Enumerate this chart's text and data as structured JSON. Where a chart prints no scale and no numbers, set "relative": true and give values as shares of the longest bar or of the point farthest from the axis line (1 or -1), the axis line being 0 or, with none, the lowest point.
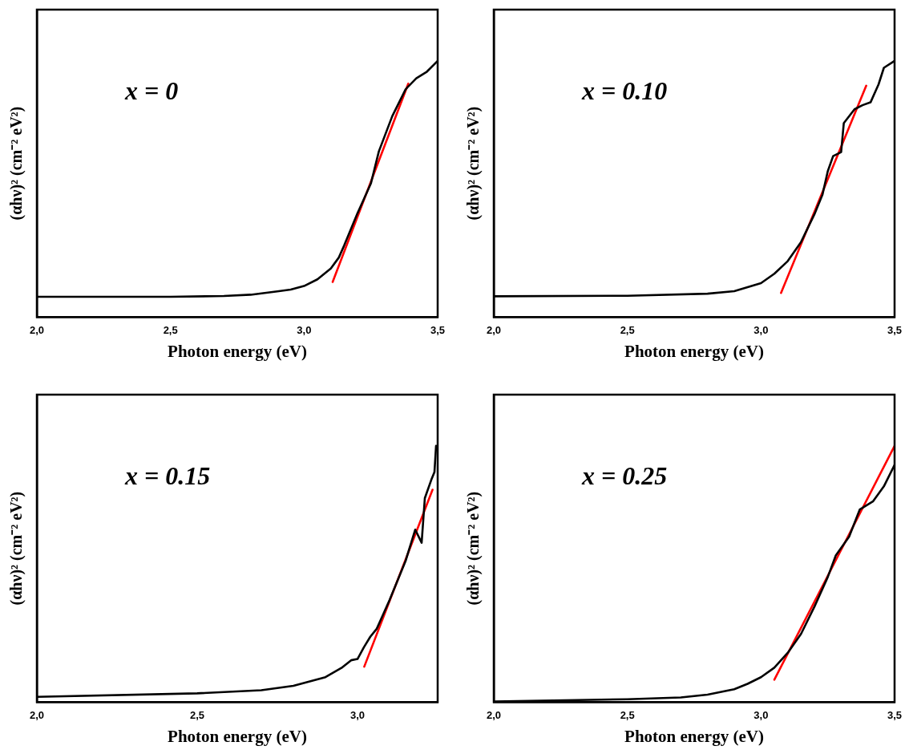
{
  "chart_data": [
    {
      "type": "line",
      "relative": true,
      "xlabel": "Photon energy (eV)",
      "ylabel": "(αhν)² (cm⁻² eV²)",
      "annotations": [
        "x = 0"
      ],
      "tick_labels": "x",
      "marker": "none",
      "xlim": [
        2.0,
        3.5
      ],
      "xticks": [
        {
          "value": 2.0,
          "label": "2,0"
        },
        {
          "value": 2.5,
          "label": "2,5"
        },
        {
          "value": 3.0,
          "label": "3,0"
        },
        {
          "value": 3.5,
          "label": "3,5"
        }
      ],
      "series": [
        {
          "color": "#000000",
          "x": [
            2.0,
            2.5,
            2.7,
            2.8,
            2.9,
            2.95,
            3.0,
            3.05,
            3.1,
            3.13,
            3.15,
            3.2,
            3.25,
            3.28,
            3.33,
            3.38,
            3.42,
            3.46,
            3.5
          ],
          "values": [
            0.079,
            0.079,
            0.082,
            0.087,
            0.1,
            0.107,
            0.121,
            0.147,
            0.189,
            0.232,
            0.279,
            0.405,
            0.521,
            0.647,
            0.784,
            0.889,
            0.932,
            0.958,
            1
          ]
        },
        {
          "color": "#ff0000",
          "x": [
            3.107,
            3.39
          ],
          "values": [
            0.137,
            0.911
          ]
        }
      ]
    },
    {
      "type": "line",
      "relative": true,
      "xlabel": "Photon energy (eV)",
      "ylabel": "(αhν)² (cm⁻² eV²)",
      "annotations": [
        "x = 0.10"
      ],
      "tick_labels": "x",
      "marker": "none",
      "xlim": [
        2.0,
        3.5
      ],
      "xticks": [
        {
          "value": 2.0,
          "label": "2,0"
        },
        {
          "value": 2.5,
          "label": "2,5"
        },
        {
          "value": 3.0,
          "label": "3,0"
        },
        {
          "value": 3.5,
          "label": "3,5"
        }
      ],
      "series": [
        {
          "color": "#000000",
          "x": [
            2.0,
            2.5,
            2.8,
            2.9,
            3.0,
            3.05,
            3.1,
            3.15,
            3.2,
            3.23,
            3.25,
            3.27,
            3.3,
            3.31,
            3.35,
            3.38,
            3.41,
            3.44,
            3.46,
            3.5
          ],
          "values": [
            0.081,
            0.083,
            0.091,
            0.101,
            0.132,
            0.169,
            0.218,
            0.293,
            0.401,
            0.477,
            0.569,
            0.628,
            0.644,
            0.757,
            0.811,
            0.827,
            0.838,
            0.908,
            0.973,
            1
          ]
        },
        {
          "color": "#ff0000",
          "x": [
            3.075,
            3.394
          ],
          "values": [
            0.094,
            0.903
          ]
        }
      ]
    },
    {
      "type": "line",
      "relative": true,
      "xlabel": "Photon energy (eV)",
      "ylabel": "(αhν)² (cm⁻² eV²)",
      "annotations": [
        "x = 0.15"
      ],
      "tick_labels": "x",
      "marker": "none",
      "xlim": [
        2.0,
        3.25
      ],
      "xticks": [
        {
          "value": 2.0,
          "label": "2,0"
        },
        {
          "value": 2.5,
          "label": "2,5"
        },
        {
          "value": 3.0,
          "label": "3,0"
        }
      ],
      "series": [
        {
          "color": "#000000",
          "x": [
            2.0,
            2.5,
            2.7,
            2.8,
            2.9,
            2.95,
            2.98,
            3.0,
            3.02,
            3.04,
            3.06,
            3.1,
            3.15,
            3.18,
            3.2,
            3.21,
            3.23,
            3.24,
            3.245
          ],
          "values": [
            0.02,
            0.034,
            0.046,
            0.063,
            0.097,
            0.133,
            0.163,
            0.168,
            0.214,
            0.255,
            0.286,
            0.398,
            0.551,
            0.673,
            0.622,
            0.796,
            0.867,
            0.898,
            1
          ]
        },
        {
          "color": "#ff0000",
          "x": [
            3.021,
            3.234
          ],
          "values": [
            0.138,
            0.829
          ]
        }
      ]
    },
    {
      "type": "line",
      "relative": true,
      "xlabel": "Photon energy (eV)",
      "ylabel": "(αhν)² (cm⁻² eV²)",
      "annotations": [
        "x = 0.25"
      ],
      "tick_labels": "x",
      "marker": "none",
      "xlim": [
        2.0,
        3.5
      ],
      "xticks": [
        {
          "value": 2.0,
          "label": "2,0"
        },
        {
          "value": 2.5,
          "label": "2,5"
        },
        {
          "value": 3.0,
          "label": "3,0"
        },
        {
          "value": 3.5,
          "label": "3,5"
        }
      ],
      "series": [
        {
          "color": "#000000",
          "x": [
            2.0,
            2.5,
            2.7,
            2.8,
            2.9,
            2.95,
            3.0,
            3.05,
            3.1,
            3.15,
            3.2,
            3.25,
            3.28,
            3.33,
            3.37,
            3.42,
            3.46,
            3.5
          ],
          "values": [
            0.002,
            0.011,
            0.018,
            0.029,
            0.05,
            0.071,
            0.097,
            0.134,
            0.192,
            0.266,
            0.372,
            0.488,
            0.572,
            0.646,
            0.752,
            0.784,
            0.842,
            0.926
          ]
        },
        {
          "color": "#ff0000",
          "x": [
            3.05,
            3.5
          ],
          "values": [
            0.087,
            1.0
          ]
        }
      ]
    }
  ]
}
